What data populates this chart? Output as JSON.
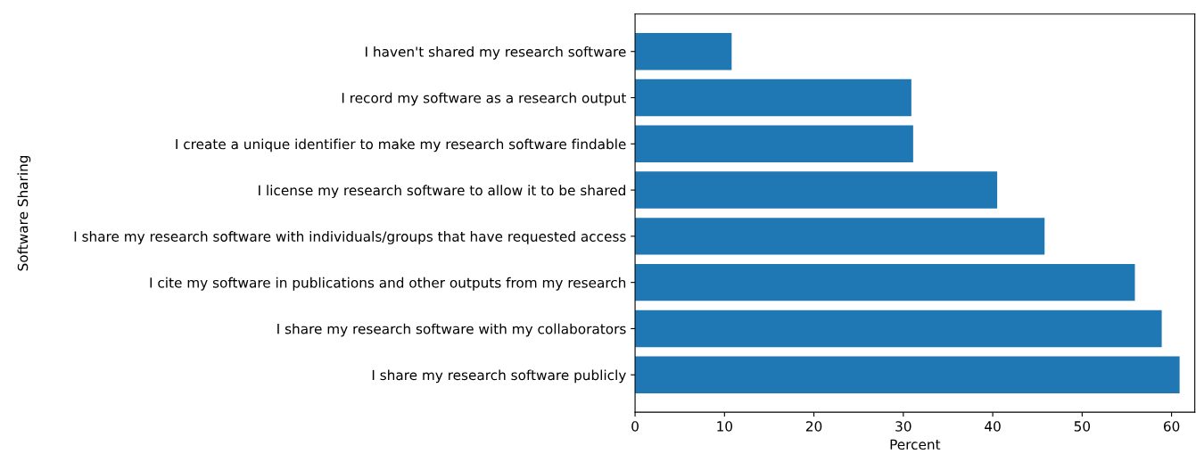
{
  "chart_data": {
    "type": "bar",
    "orientation": "horizontal",
    "xlabel": "Percent",
    "ylabel": "Software Sharing",
    "categories": [
      "I haven't shared my research software",
      "I record my software as a research output",
      "I create a unique identifier to make my research software findable",
      "I license my research software to allow it to be shared",
      "I share my research software with individuals/groups that have requested access",
      "I cite my software in publications and other outputs from my research",
      "I share my research software with my collaborators",
      "I share my research software publicly"
    ],
    "values": [
      10.8,
      30.9,
      31.1,
      40.5,
      45.8,
      55.9,
      58.9,
      60.9
    ],
    "color": "#1f77b4",
    "xlim": [
      0,
      62.6
    ],
    "xticks": [
      0,
      10,
      20,
      30,
      40,
      50,
      60
    ],
    "grid": false,
    "legend": false
  }
}
